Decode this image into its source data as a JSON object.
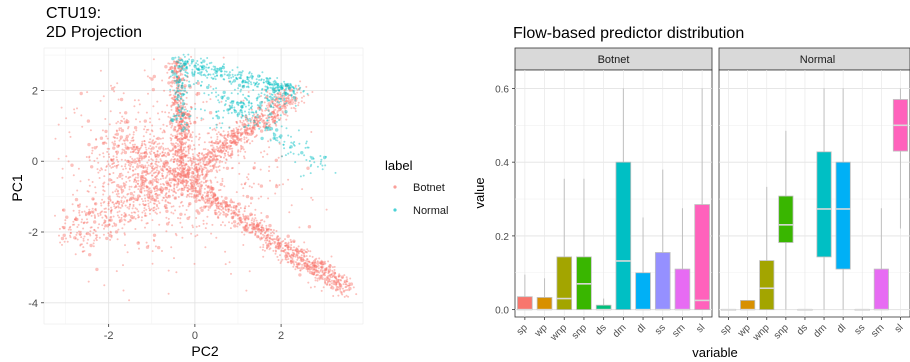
{
  "colors": {
    "botnet": "#F8766D",
    "normal": "#00BFC4",
    "panel": "#EBEBEB",
    "grid": "#FFFFFF",
    "box_colors": [
      "#F8766D",
      "#D89000",
      "#A3A500",
      "#39B600",
      "#00BF7D",
      "#00BFC4",
      "#00B0F6",
      "#9590FF",
      "#E76BF3",
      "#FF62BC"
    ]
  },
  "chart_data": [
    {
      "type": "scatter",
      "title": "CTU19:\n2D Projection",
      "title_lines": [
        "CTU19:",
        "2D Projection"
      ],
      "xlabel": "PC2",
      "ylabel": "PC1",
      "xlim": [
        -3.5,
        3.9
      ],
      "ylim": [
        -4.6,
        3.2
      ],
      "x_ticks": [
        -2,
        0,
        2
      ],
      "x_tick_labels": [
        "-2",
        "0",
        "2"
      ],
      "y_ticks": [
        2,
        0,
        -2,
        -4
      ],
      "y_tick_labels": [
        "2",
        "0",
        "-2",
        "-4"
      ],
      "grid": true,
      "legend": {
        "title": "label",
        "entries": [
          "Botnet",
          "Normal"
        ],
        "position": "right"
      },
      "series": [
        {
          "name": "Botnet",
          "color": "#F8766D",
          "structure": [
            {
              "from": [
                -0.3,
                -0.5
              ],
              "to": [
                3.5,
                -3.6
              ],
              "spread": 0.15,
              "n": 900
            },
            {
              "from": [
                -0.3,
                -0.5
              ],
              "to": [
                2.3,
                1.9
              ],
              "spread": 0.18,
              "n": 700
            },
            {
              "from": [
                -0.3,
                -0.5
              ],
              "to": [
                -0.4,
                2.8
              ],
              "spread": 0.12,
              "n": 450
            },
            {
              "from": [
                -0.3,
                -0.5
              ],
              "to": [
                -2.9,
                -2.0
              ],
              "spread": 0.35,
              "n": 450
            },
            {
              "from": [
                -0.3,
                -0.5
              ],
              "to": [
                -1.8,
                0.4
              ],
              "spread": 0.45,
              "n": 450
            },
            {
              "center": [
                -0.5,
                -0.3
              ],
              "sd": [
                1.3,
                1.3
              ],
              "n": 650
            }
          ]
        },
        {
          "name": "Normal",
          "color": "#00BFC4",
          "structure": [
            {
              "from": [
                -0.4,
                2.8
              ],
              "to": [
                2.3,
                2.0
              ],
              "spread": 0.12,
              "n": 260
            },
            {
              "from": [
                -0.3,
                2.8
              ],
              "to": [
                2.9,
                -0.2
              ],
              "spread": 0.18,
              "n": 200
            },
            {
              "from": [
                0.2,
                1.2
              ],
              "to": [
                2.3,
                1.9
              ],
              "spread": 0.18,
              "n": 140
            },
            {
              "from": [
                -0.4,
                2.8
              ],
              "to": [
                -0.3,
                1.0
              ],
              "spread": 0.1,
              "n": 100
            }
          ]
        }
      ]
    },
    {
      "type": "box",
      "title": "Flow-based predictor distribution",
      "xlabel": "variable",
      "ylabel": "value",
      "ylim": [
        -0.02,
        0.65
      ],
      "y_ticks": [
        0.0,
        0.2,
        0.4,
        0.6
      ],
      "y_tick_labels": [
        "0.0",
        "0.2",
        "0.4",
        "0.6"
      ],
      "categories": [
        "sp",
        "wp",
        "wnp",
        "snp",
        "ds",
        "dm",
        "dl",
        "ss",
        "sm",
        "sl"
      ],
      "facets": [
        {
          "name": "Botnet",
          "boxes": [
            {
              "q1": 0.0,
              "median": 0.0,
              "q3": 0.035,
              "lo": 0.0,
              "hi": 0.095
            },
            {
              "q1": 0.0,
              "median": 0.0,
              "q3": 0.033,
              "lo": 0.0,
              "hi": 0.085
            },
            {
              "q1": 0.0,
              "median": 0.03,
              "q3": 0.143,
              "lo": 0.0,
              "hi": 0.355
            },
            {
              "q1": 0.0,
              "median": 0.07,
              "q3": 0.143,
              "lo": 0.0,
              "hi": 0.355
            },
            {
              "q1": 0.0,
              "median": 0.0,
              "q3": 0.012,
              "lo": 0.0,
              "hi": 0.03
            },
            {
              "q1": 0.0,
              "median": 0.132,
              "q3": 0.4,
              "lo": 0.0,
              "hi": 0.6
            },
            {
              "q1": 0.0,
              "median": 0.0,
              "q3": 0.1,
              "lo": 0.0,
              "hi": 0.25
            },
            {
              "q1": 0.0,
              "median": 0.0,
              "q3": 0.155,
              "lo": 0.0,
              "hi": 0.38
            },
            {
              "q1": 0.0,
              "median": 0.0,
              "q3": 0.11,
              "lo": 0.0,
              "hi": 0.275
            },
            {
              "q1": 0.0,
              "median": 0.025,
              "q3": 0.285,
              "lo": 0.0,
              "hi": 0.6
            }
          ]
        },
        {
          "name": "Normal",
          "boxes": [
            {
              "q1": 0.0,
              "median": 0.0,
              "q3": 0.0,
              "lo": 0.0,
              "hi": 0.0
            },
            {
              "q1": 0.0,
              "median": 0.0,
              "q3": 0.025,
              "lo": 0.0,
              "hi": 0.025
            },
            {
              "q1": 0.0,
              "median": 0.058,
              "q3": 0.133,
              "lo": 0.0,
              "hi": 0.333
            },
            {
              "q1": 0.182,
              "median": 0.23,
              "q3": 0.308,
              "lo": 0.0,
              "hi": 0.485
            },
            {
              "q1": 0.0,
              "median": 0.0,
              "q3": 0.0,
              "lo": 0.0,
              "hi": 0.0
            },
            {
              "q1": 0.143,
              "median": 0.273,
              "q3": 0.428,
              "lo": 0.0,
              "hi": 0.6
            },
            {
              "q1": 0.11,
              "median": 0.273,
              "q3": 0.4,
              "lo": 0.0,
              "hi": 0.6
            },
            {
              "q1": 0.0,
              "median": 0.0,
              "q3": 0.0,
              "lo": 0.0,
              "hi": 0.0
            },
            {
              "q1": 0.0,
              "median": 0.0,
              "q3": 0.11,
              "lo": 0.0,
              "hi": 0.275
            },
            {
              "q1": 0.43,
              "median": 0.5,
              "q3": 0.57,
              "lo": 0.22,
              "hi": 0.6
            }
          ]
        }
      ]
    }
  ]
}
